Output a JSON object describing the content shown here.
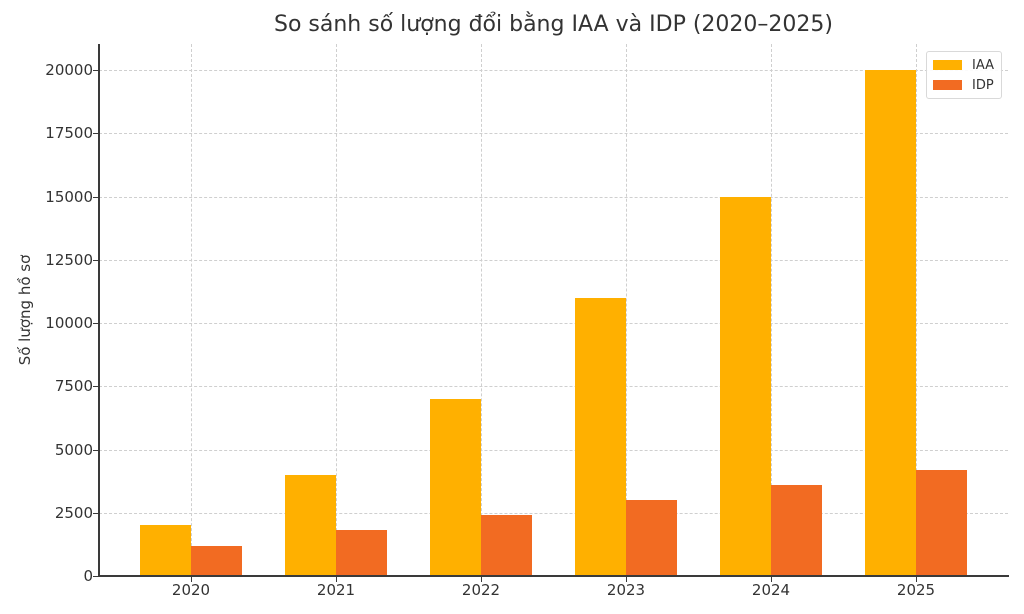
{
  "chart_data": {
    "type": "bar",
    "title": "So sánh số lượng đổi bằng IAA và IDP (2020–2025)",
    "xlabel": "",
    "ylabel": "Số lượng hồ sơ",
    "categories": [
      "2020",
      "2021",
      "2022",
      "2023",
      "2024",
      "2025"
    ],
    "series": [
      {
        "name": "IAA",
        "color": "#FFB000",
        "values": [
          2000,
          4000,
          7000,
          11000,
          15000,
          20000
        ]
      },
      {
        "name": "IDP",
        "color": "#F26B22",
        "values": [
          1200,
          1800,
          2400,
          3000,
          3600,
          4200
        ]
      }
    ],
    "ylim": [
      0,
      21000
    ],
    "yticks": [
      "0",
      "2500",
      "5000",
      "7500",
      "10000",
      "12500",
      "15000",
      "17500",
      "20000"
    ],
    "grid": true,
    "legend_position": "upper right"
  },
  "legend": {
    "items": [
      {
        "label": "IAA",
        "color": "#FFB000"
      },
      {
        "label": "IDP",
        "color": "#F26B22"
      }
    ]
  }
}
